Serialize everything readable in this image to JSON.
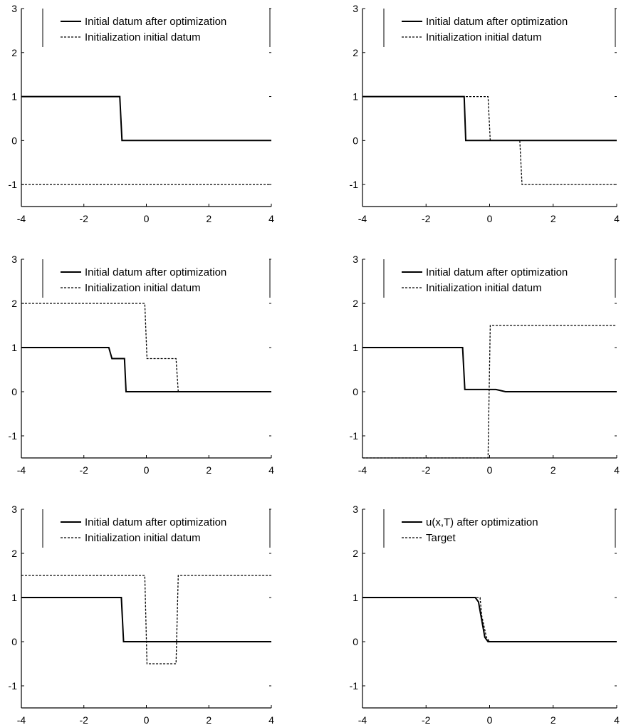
{
  "chart_data": [
    {
      "type": "line",
      "xlim": [
        -4,
        4
      ],
      "ylim": [
        -1.5,
        3
      ],
      "xticks": [
        "-4",
        "-2",
        "0",
        "2",
        "4"
      ],
      "yticks": [
        "-1",
        "0",
        "1",
        "2",
        "3"
      ],
      "grid": false,
      "legend_position": "top-right",
      "series": [
        {
          "name": "Initial datum after optimization",
          "style": "solid",
          "x": [
            -4,
            -0.85,
            -0.78,
            4
          ],
          "y": [
            1,
            1,
            0,
            0
          ]
        },
        {
          "name": "Initialization initial datum",
          "style": "dashed",
          "x": [
            -4,
            4
          ],
          "y": [
            -1,
            -1
          ]
        }
      ]
    },
    {
      "type": "line",
      "xlim": [
        -4,
        4
      ],
      "ylim": [
        -1.5,
        3
      ],
      "xticks": [
        "-4",
        "-2",
        "0",
        "2",
        "4"
      ],
      "yticks": [
        "-1",
        "0",
        "1",
        "2",
        "3"
      ],
      "grid": false,
      "legend_position": "top-right",
      "series": [
        {
          "name": "Initial datum after optimization",
          "style": "solid",
          "x": [
            -4,
            -0.8,
            -0.75,
            4
          ],
          "y": [
            1,
            1,
            0,
            0
          ]
        },
        {
          "name": "Initialization initial datum",
          "style": "dashed",
          "x": [
            -4,
            -0.05,
            0.02,
            0.95,
            1.02,
            4
          ],
          "y": [
            1,
            1,
            0,
            0,
            -1,
            -1
          ]
        }
      ]
    },
    {
      "type": "line",
      "xlim": [
        -4,
        4
      ],
      "ylim": [
        -1.5,
        3
      ],
      "xticks": [
        "-4",
        "-2",
        "0",
        "2",
        "4"
      ],
      "yticks": [
        "-1",
        "0",
        "1",
        "2",
        "3"
      ],
      "grid": false,
      "legend_position": "top-right",
      "series": [
        {
          "name": "Initial datum after optimization",
          "style": "solid",
          "x": [
            -4,
            -1.2,
            -1.1,
            -0.7,
            -0.65,
            4
          ],
          "y": [
            1,
            1,
            0.75,
            0.75,
            0,
            0
          ]
        },
        {
          "name": "Initialization initial datum",
          "style": "dashed",
          "x": [
            -4,
            -0.05,
            0.02,
            0.95,
            1.02,
            4
          ],
          "y": [
            2,
            2,
            0.75,
            0.75,
            0,
            0
          ]
        }
      ]
    },
    {
      "type": "line",
      "xlim": [
        -4,
        4
      ],
      "ylim": [
        -1.5,
        3
      ],
      "xticks": [
        "-4",
        "-2",
        "0",
        "2",
        "4"
      ],
      "yticks": [
        "-1",
        "0",
        "1",
        "2",
        "3"
      ],
      "grid": false,
      "legend_position": "top-right",
      "series": [
        {
          "name": "Initial datum after optimization",
          "style": "solid",
          "x": [
            -4,
            -0.85,
            -0.78,
            0.2,
            0.5,
            4
          ],
          "y": [
            1,
            1,
            0.05,
            0.05,
            0,
            0
          ]
        },
        {
          "name": "Initialization initial datum",
          "style": "dashed",
          "x": [
            -4,
            -0.05,
            0.02,
            4
          ],
          "y": [
            -1.5,
            -1.5,
            1.5,
            1.5
          ]
        }
      ]
    },
    {
      "type": "line",
      "xlim": [
        -4,
        4
      ],
      "ylim": [
        -1.5,
        3
      ],
      "xticks": [
        "-4",
        "-2",
        "0",
        "2",
        "4"
      ],
      "yticks": [
        "-1",
        "0",
        "1",
        "2",
        "3"
      ],
      "grid": false,
      "legend_position": "top-right",
      "series": [
        {
          "name": "Initial datum after optimization",
          "style": "solid",
          "x": [
            -4,
            -0.8,
            -0.73,
            4
          ],
          "y": [
            1,
            1,
            0,
            0
          ]
        },
        {
          "name": "Initialization initial datum",
          "style": "dashed",
          "x": [
            -4,
            -0.05,
            0.02,
            0.95,
            1.02,
            4
          ],
          "y": [
            1.5,
            1.5,
            -0.5,
            -0.5,
            1.5,
            1.5
          ]
        }
      ]
    },
    {
      "type": "line",
      "xlim": [
        -4,
        4
      ],
      "ylim": [
        -1.5,
        3
      ],
      "xticks": [
        "-4",
        "-2",
        "0",
        "2",
        "4"
      ],
      "yticks": [
        "-1",
        "0",
        "1",
        "2",
        "3"
      ],
      "grid": false,
      "legend_position": "top-right",
      "series": [
        {
          "name": "u(x,T) after optimization",
          "style": "solid",
          "x": [
            -4,
            -0.45,
            -0.35,
            -0.25,
            -0.15,
            -0.05,
            4
          ],
          "y": [
            1,
            1,
            0.9,
            0.5,
            0.1,
            0,
            0
          ]
        },
        {
          "name": "Target",
          "style": "dashed",
          "x": [
            -4,
            -0.3,
            -0.25,
            -0.1,
            0,
            4
          ],
          "y": [
            1,
            1,
            0.6,
            0.1,
            0,
            0
          ]
        }
      ]
    }
  ]
}
